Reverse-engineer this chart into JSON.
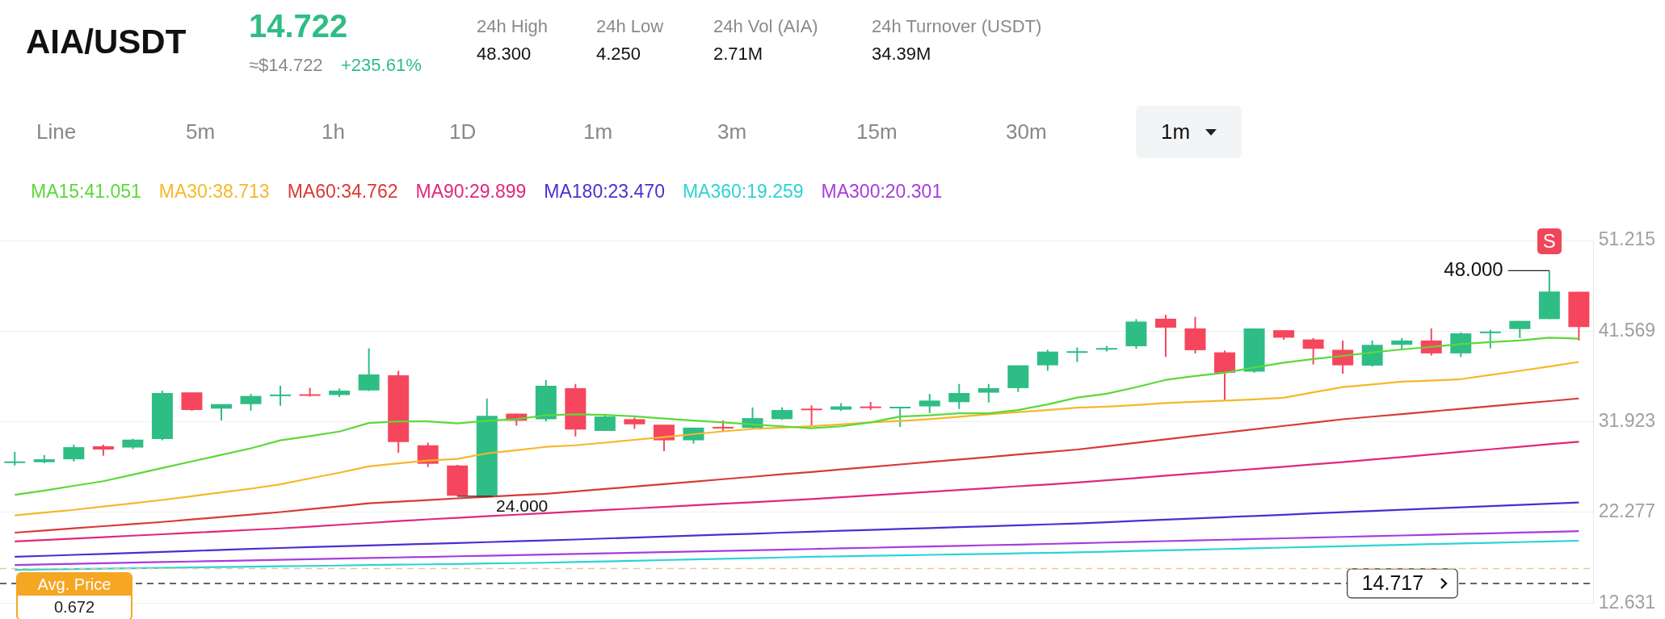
{
  "chart_data": {
    "type": "candlestick",
    "title": "AIA/USDT",
    "subtitle": "14.722",
    "categories": [
      null,
      null,
      null,
      null,
      null,
      null,
      null,
      null,
      null,
      null,
      null,
      null,
      null,
      null,
      null,
      null,
      null,
      null,
      null,
      null,
      null,
      null,
      null,
      null,
      null,
      null,
      null,
      null,
      null,
      null,
      null,
      null,
      null,
      null,
      null,
      null,
      null,
      null,
      null,
      null,
      null,
      null,
      null,
      null,
      null,
      null,
      null,
      null,
      null,
      null,
      null,
      null,
      null,
      null
    ],
    "ohlc": [
      [
        27.65,
        28.73,
        27.27,
        27.7
      ],
      [
        27.62,
        28.38,
        27.52,
        27.93
      ],
      [
        27.93,
        29.49,
        27.69,
        29.22
      ],
      [
        29.32,
        29.49,
        28.31,
        28.97
      ],
      [
        29.18,
        30.12,
        29.01,
        30.02
      ],
      [
        30.08,
        35.23,
        29.95,
        34.98
      ],
      [
        35.05,
        35.05,
        33.11,
        33.17
      ],
      [
        33.32,
        33.8,
        32.06,
        33.8
      ],
      [
        33.8,
        34.88,
        33.11,
        34.67
      ],
      [
        34.75,
        35.75,
        33.63,
        34.82
      ],
      [
        34.85,
        35.54,
        34.6,
        34.8
      ],
      [
        34.77,
        35.47,
        34.53,
        35.23
      ],
      [
        35.26,
        39.74,
        35.19,
        36.96
      ],
      [
        36.86,
        37.34,
        28.63,
        29.77
      ],
      [
        29.42,
        29.7,
        27.1,
        27.45
      ],
      [
        27.27,
        27.34,
        24.0,
        24.05
      ],
      [
        24.05,
        34.39,
        24.0,
        32.55
      ],
      [
        32.79,
        32.79,
        31.51,
        32.03
      ],
      [
        32.2,
        36.37,
        31.96,
        35.75
      ],
      [
        35.5,
        35.95,
        30.36,
        31.09
      ],
      [
        30.95,
        32.69,
        30.95,
        32.48
      ],
      [
        32.2,
        32.37,
        31.16,
        31.65
      ],
      [
        31.61,
        31.61,
        28.8,
        29.95
      ],
      [
        29.95,
        31.3,
        29.6,
        31.3
      ],
      [
        31.38,
        32.07,
        30.88,
        31.33
      ],
      [
        31.27,
        33.45,
        31.16,
        32.31
      ],
      [
        32.2,
        33.45,
        32.13,
        33.17
      ],
      [
        33.32,
        33.66,
        31.51,
        33.26
      ],
      [
        33.21,
        33.91,
        33.07,
        33.56
      ],
      [
        33.55,
        34.04,
        33.17,
        33.49
      ],
      [
        33.49,
        33.52,
        31.37,
        33.52
      ],
      [
        33.56,
        34.88,
        32.86,
        34.18
      ],
      [
        34.01,
        35.95,
        33.28,
        34.98
      ],
      [
        35.02,
        35.95,
        33.97,
        35.5
      ],
      [
        35.5,
        37.93,
        35.09,
        37.93
      ],
      [
        37.93,
        39.6,
        37.34,
        39.39
      ],
      [
        39.39,
        39.84,
        38.28,
        39.43
      ],
      [
        39.73,
        40.0,
        39.4,
        39.77
      ],
      [
        39.96,
        42.85,
        39.69,
        42.59
      ],
      [
        42.89,
        43.31,
        38.82,
        41.94
      ],
      [
        41.86,
        43.08,
        39.2,
        39.54
      ],
      [
        39.31,
        39.5,
        34.21,
        37.14
      ],
      [
        37.26,
        41.86,
        37.14,
        41.86
      ],
      [
        41.67,
        41.67,
        40.65,
        40.87
      ],
      [
        40.68,
        40.83,
        38.02,
        39.69
      ],
      [
        39.58,
        40.57,
        37.03,
        37.93
      ],
      [
        37.9,
        40.57,
        37.79,
        40.11
      ],
      [
        40.11,
        40.83,
        39.69,
        40.57
      ],
      [
        40.57,
        41.86,
        38.97,
        39.2
      ],
      [
        39.2,
        41.44,
        38.82,
        41.33
      ],
      [
        41.48,
        41.71,
        39.73,
        41.52
      ],
      [
        41.79,
        42.66,
        40.83,
        42.66
      ],
      [
        42.85,
        48.0,
        42.85,
        45.78
      ],
      [
        45.75,
        45.75,
        40.57,
        42.01
      ]
    ],
    "colors": [
      "#2ebd85",
      "#2ebd85",
      "#2ebd85",
      "#f6465d",
      "#2ebd85",
      "#2ebd85",
      "#f6465d",
      "#2ebd85",
      "#2ebd85",
      "#2ebd85",
      "#f6465d",
      "#2ebd85",
      "#2ebd85",
      "#f6465d",
      "#f6465d",
      "#f6465d",
      "#2ebd85",
      "#f6465d",
      "#2ebd85",
      "#f6465d",
      "#2ebd85",
      "#f6465d",
      "#f6465d",
      "#2ebd85",
      "#f6465d",
      "#2ebd85",
      "#2ebd85",
      "#f6465d",
      "#2ebd85",
      "#f6465d",
      "#2ebd85",
      "#2ebd85",
      "#2ebd85",
      "#2ebd85",
      "#2ebd85",
      "#2ebd85",
      "#2ebd85",
      "#2ebd85",
      "#2ebd85",
      "#f6465d",
      "#f6465d",
      "#f6465d",
      "#2ebd85",
      "#f6465d",
      "#f6465d",
      "#f6465d",
      "#2ebd85",
      "#2ebd85",
      "#f6465d",
      "#2ebd85",
      "#2ebd85",
      "#2ebd85",
      "#2ebd85",
      "#f6465d"
    ],
    "series": [
      {
        "name": "MA15:41.051",
        "type": "line",
        "color": "#5ad93a",
        "values": [
          24.15,
          24.6,
          25.1,
          25.6,
          26.3,
          27.0,
          27.7,
          28.4,
          29.1,
          29.95,
          30.4,
          30.88,
          31.79,
          31.96,
          31.96,
          31.75,
          32.03,
          32.2,
          32.62,
          32.72,
          32.65,
          32.5,
          32.27,
          32.05,
          31.85,
          31.65,
          31.44,
          31.23,
          31.44,
          31.85,
          32.48,
          32.6,
          32.83,
          32.83,
          33.17,
          33.77,
          34.5,
          34.9,
          35.6,
          36.38,
          36.8,
          37.14,
          37.7,
          38.21,
          38.6,
          38.93,
          39.3,
          39.62,
          39.9,
          40.19,
          40.4,
          40.57,
          40.87,
          40.76
        ]
      },
      {
        "name": "MA30:38.713",
        "type": "line",
        "color": "#f5b829",
        "values": [
          21.96,
          22.25,
          22.55,
          22.9,
          23.24,
          23.6,
          24.0,
          24.4,
          24.8,
          25.26,
          25.9,
          26.5,
          27.17,
          27.5,
          27.79,
          27.97,
          28.56,
          28.9,
          29.25,
          29.42,
          29.7,
          30.0,
          30.29,
          30.6,
          30.9,
          31.16,
          31.3,
          31.44,
          31.65,
          31.85,
          32.0,
          32.2,
          32.45,
          32.72,
          32.95,
          33.17,
          33.42,
          33.53,
          33.7,
          33.91,
          34.05,
          34.17,
          34.3,
          34.48,
          35.05,
          35.62,
          35.9,
          36.19,
          36.3,
          36.46,
          36.9,
          37.34,
          37.8,
          38.29
        ]
      },
      {
        "name": "MA60:34.762",
        "type": "line",
        "color": "#d93a36",
        "values": [
          20.12,
          20.35,
          20.58,
          20.81,
          21.04,
          21.26,
          21.52,
          21.78,
          22.05,
          22.31,
          22.62,
          22.93,
          23.24,
          23.42,
          23.59,
          23.77,
          23.94,
          24.1,
          24.25,
          24.51,
          24.77,
          25.03,
          25.29,
          25.55,
          25.81,
          26.07,
          26.33,
          26.58,
          26.85,
          27.11,
          27.38,
          27.64,
          27.91,
          28.17,
          28.44,
          28.7,
          28.97,
          29.33,
          29.69,
          30.05,
          30.41,
          30.77,
          31.12,
          31.48,
          31.84,
          32.19,
          32.47,
          32.74,
          33.02,
          33.3,
          33.57,
          33.85,
          34.12,
          34.4
        ]
      },
      {
        "name": "MA90:29.899",
        "type": "line",
        "color": "#e0287a",
        "values": [
          19.18,
          19.33,
          19.49,
          19.64,
          19.8,
          19.95,
          20.11,
          20.26,
          20.42,
          20.57,
          20.76,
          20.96,
          21.15,
          21.35,
          21.54,
          21.7,
          21.87,
          22.03,
          22.2,
          22.37,
          22.53,
          22.7,
          22.86,
          23.03,
          23.2,
          23.36,
          23.53,
          23.69,
          23.89,
          24.08,
          24.28,
          24.47,
          24.67,
          24.86,
          25.06,
          25.25,
          25.45,
          25.69,
          25.93,
          26.18,
          26.42,
          26.66,
          26.9,
          27.14,
          27.39,
          27.63,
          27.9,
          28.17,
          28.44,
          28.72,
          28.99,
          29.26,
          29.53,
          29.8
        ]
      },
      {
        "name": "MA180:23.470",
        "type": "line",
        "color": "#4a2fd0",
        "values": [
          17.55,
          17.65,
          17.76,
          17.86,
          17.97,
          18.07,
          18.18,
          18.28,
          18.39,
          18.49,
          18.58,
          18.67,
          18.76,
          18.85,
          18.93,
          19.02,
          19.11,
          19.2,
          19.29,
          19.39,
          19.5,
          19.6,
          19.7,
          19.81,
          19.91,
          20.01,
          20.12,
          20.22,
          20.32,
          20.41,
          20.51,
          20.61,
          20.71,
          20.8,
          20.9,
          21.0,
          21.1,
          21.23,
          21.37,
          21.5,
          21.63,
          21.77,
          21.9,
          22.03,
          22.17,
          22.3,
          22.43,
          22.56,
          22.69,
          22.81,
          22.94,
          23.07,
          23.2,
          23.33
        ]
      },
      {
        "name": "MA360:19.259",
        "type": "line",
        "color": "#2ed3d3",
        "values": [
          16.16,
          16.2,
          16.24,
          16.29,
          16.33,
          16.37,
          16.41,
          16.46,
          16.5,
          16.54,
          16.58,
          16.62,
          16.67,
          16.71,
          16.75,
          16.79,
          16.84,
          16.88,
          16.92,
          16.99,
          17.06,
          17.13,
          17.2,
          17.27,
          17.34,
          17.41,
          17.48,
          17.55,
          17.6,
          17.66,
          17.71,
          17.76,
          17.81,
          17.86,
          17.92,
          17.97,
          18.02,
          18.09,
          18.17,
          18.24,
          18.31,
          18.38,
          18.46,
          18.53,
          18.6,
          18.68,
          18.75,
          18.82,
          18.9,
          18.97,
          19.04,
          19.11,
          19.19,
          19.26
        ]
      },
      {
        "name": "MA300:20.301",
        "type": "line",
        "color": "#a63ddb",
        "values": [
          16.68,
          16.74,
          16.8,
          16.87,
          16.93,
          16.99,
          17.05,
          17.11,
          17.17,
          17.24,
          17.3,
          17.36,
          17.42,
          17.48,
          17.54,
          17.61,
          17.67,
          17.73,
          17.79,
          17.86,
          17.92,
          17.99,
          18.05,
          18.12,
          18.18,
          18.25,
          18.31,
          18.38,
          18.45,
          18.51,
          18.58,
          18.65,
          18.72,
          18.79,
          18.85,
          18.92,
          18.99,
          19.07,
          19.14,
          19.22,
          19.29,
          19.37,
          19.45,
          19.52,
          19.6,
          19.67,
          19.75,
          19.82,
          19.9,
          19.98,
          20.05,
          20.13,
          20.2,
          20.28
        ]
      }
    ],
    "ylim": [
      12.631,
      51.215
    ],
    "yticks": [
      12.631,
      22.277,
      31.923,
      41.569,
      51.215
    ],
    "grid": "y",
    "legend": "top left",
    "tick_labels": "y",
    "marker": "none",
    "ref_lines": [
      {
        "axis": "y",
        "value": 14.717,
        "label": "14.717",
        "color": "#333333",
        "line_style": "dashed"
      },
      {
        "axis": "y",
        "value": 16.29,
        "color": "#e8c89a",
        "line_style": "dashed"
      }
    ],
    "annotations": [
      "≈$14.722",
      "+235.61%",
      "24h High",
      "48.300",
      "24h Low",
      "4.250",
      "24h Vol (AIA)",
      "2.71M",
      "24h Turnover (USDT)",
      "34.39M",
      "Line",
      "5m",
      "1h",
      "1D",
      "1m",
      "3m",
      "15m",
      "30m",
      "1m",
      "Avg. Price",
      "0.672",
      "S",
      "48.000",
      "24.000"
    ]
  }
}
